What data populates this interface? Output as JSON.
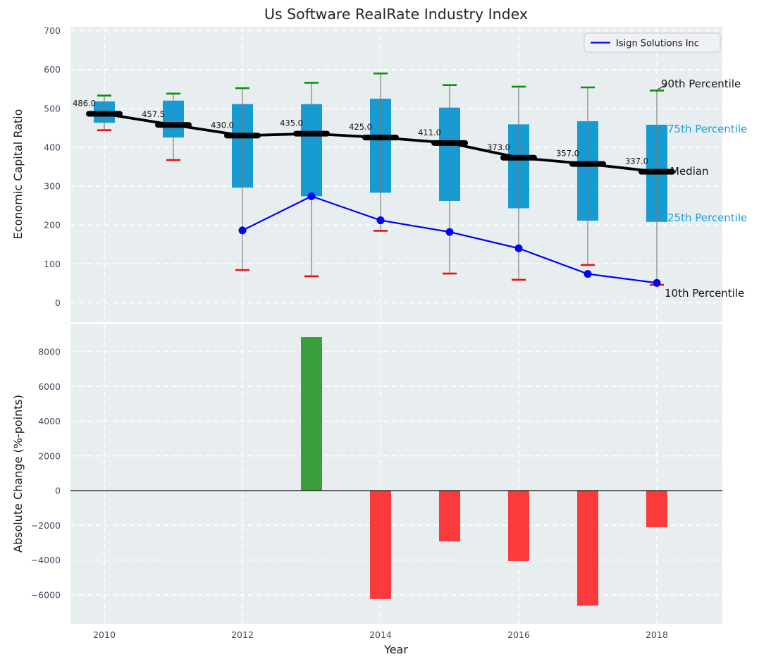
{
  "title": "Us Software RealRate Industry Index",
  "legend_label": "Isign Solutions Inc",
  "annotations": {
    "p90": "90th Percentile",
    "p75": "75th Percentile",
    "median": "Median",
    "p25": "25th Percentile",
    "p10": "10th Percentile"
  },
  "colors": {
    "box": "#179bd3",
    "percentile_text": "#1c9fd8",
    "whisker": "#7d7d7d",
    "cap_high": "#0a930a",
    "cap_low": "#ee1010",
    "median": "#000000",
    "company_line": "#0000ff",
    "bar_positive": "#3a9e3c",
    "bar_negative": "#fb3b3b",
    "tick_text": "#3e4b61",
    "plot_bg": "#e8edef",
    "grid": "#ffffff"
  },
  "chart_data": [
    {
      "type": "box-whisker-with-line",
      "title": "Us Software RealRate Industry Index",
      "ylabel": "Economic Capital Ratio",
      "ylim": [
        -50,
        710
      ],
      "yticks": [
        0,
        100,
        200,
        300,
        400,
        500,
        600,
        700
      ],
      "x": [
        2010,
        2011,
        2012,
        2013,
        2014,
        2015,
        2016,
        2017,
        2018
      ],
      "xticks": [
        2010,
        2012,
        2014,
        2016,
        2018
      ],
      "grid": true,
      "legend_position": "upper right",
      "series": [
        {
          "name": "90th Percentile",
          "values": [
            533,
            538,
            552,
            566,
            590,
            560,
            556,
            554,
            546
          ]
        },
        {
          "name": "75th Percentile",
          "values": [
            518,
            520,
            511,
            511,
            525,
            502,
            459,
            467,
            458
          ]
        },
        {
          "name": "Median",
          "values": [
            486.0,
            457.5,
            430.0,
            435.0,
            425.0,
            411.0,
            373.0,
            357.0,
            337.0
          ],
          "labels": [
            "486.0",
            "457.5",
            "430.0",
            "435.0",
            "425.0",
            "411.0",
            "373.0",
            "357.0",
            "337.0"
          ]
        },
        {
          "name": "25th Percentile",
          "values": [
            463,
            425,
            296,
            274,
            283,
            262,
            243,
            211,
            208
          ]
        },
        {
          "name": "10th Percentile",
          "values": [
            444,
            367,
            84,
            68,
            185,
            75,
            59,
            97,
            46
          ]
        },
        {
          "name": "Isign Solutions Inc",
          "x": [
            2012,
            2013,
            2014,
            2015,
            2016,
            2017,
            2018
          ],
          "values": [
            186,
            274,
            212,
            182,
            140,
            74,
            51
          ]
        }
      ]
    },
    {
      "type": "bar",
      "ylabel": "Absolute Change (%-points)",
      "xlabel": "Year",
      "ylim": [
        -7700,
        9600
      ],
      "yticks": [
        -6000,
        -4000,
        -2000,
        0,
        2000,
        4000,
        6000,
        8000
      ],
      "x": [
        2013,
        2014,
        2015,
        2016,
        2017,
        2018
      ],
      "values": [
        8850,
        -6250,
        -2930,
        -4060,
        -6630,
        -2110
      ],
      "xticks": [
        2010,
        2012,
        2014,
        2016,
        2018
      ],
      "grid": true
    }
  ]
}
